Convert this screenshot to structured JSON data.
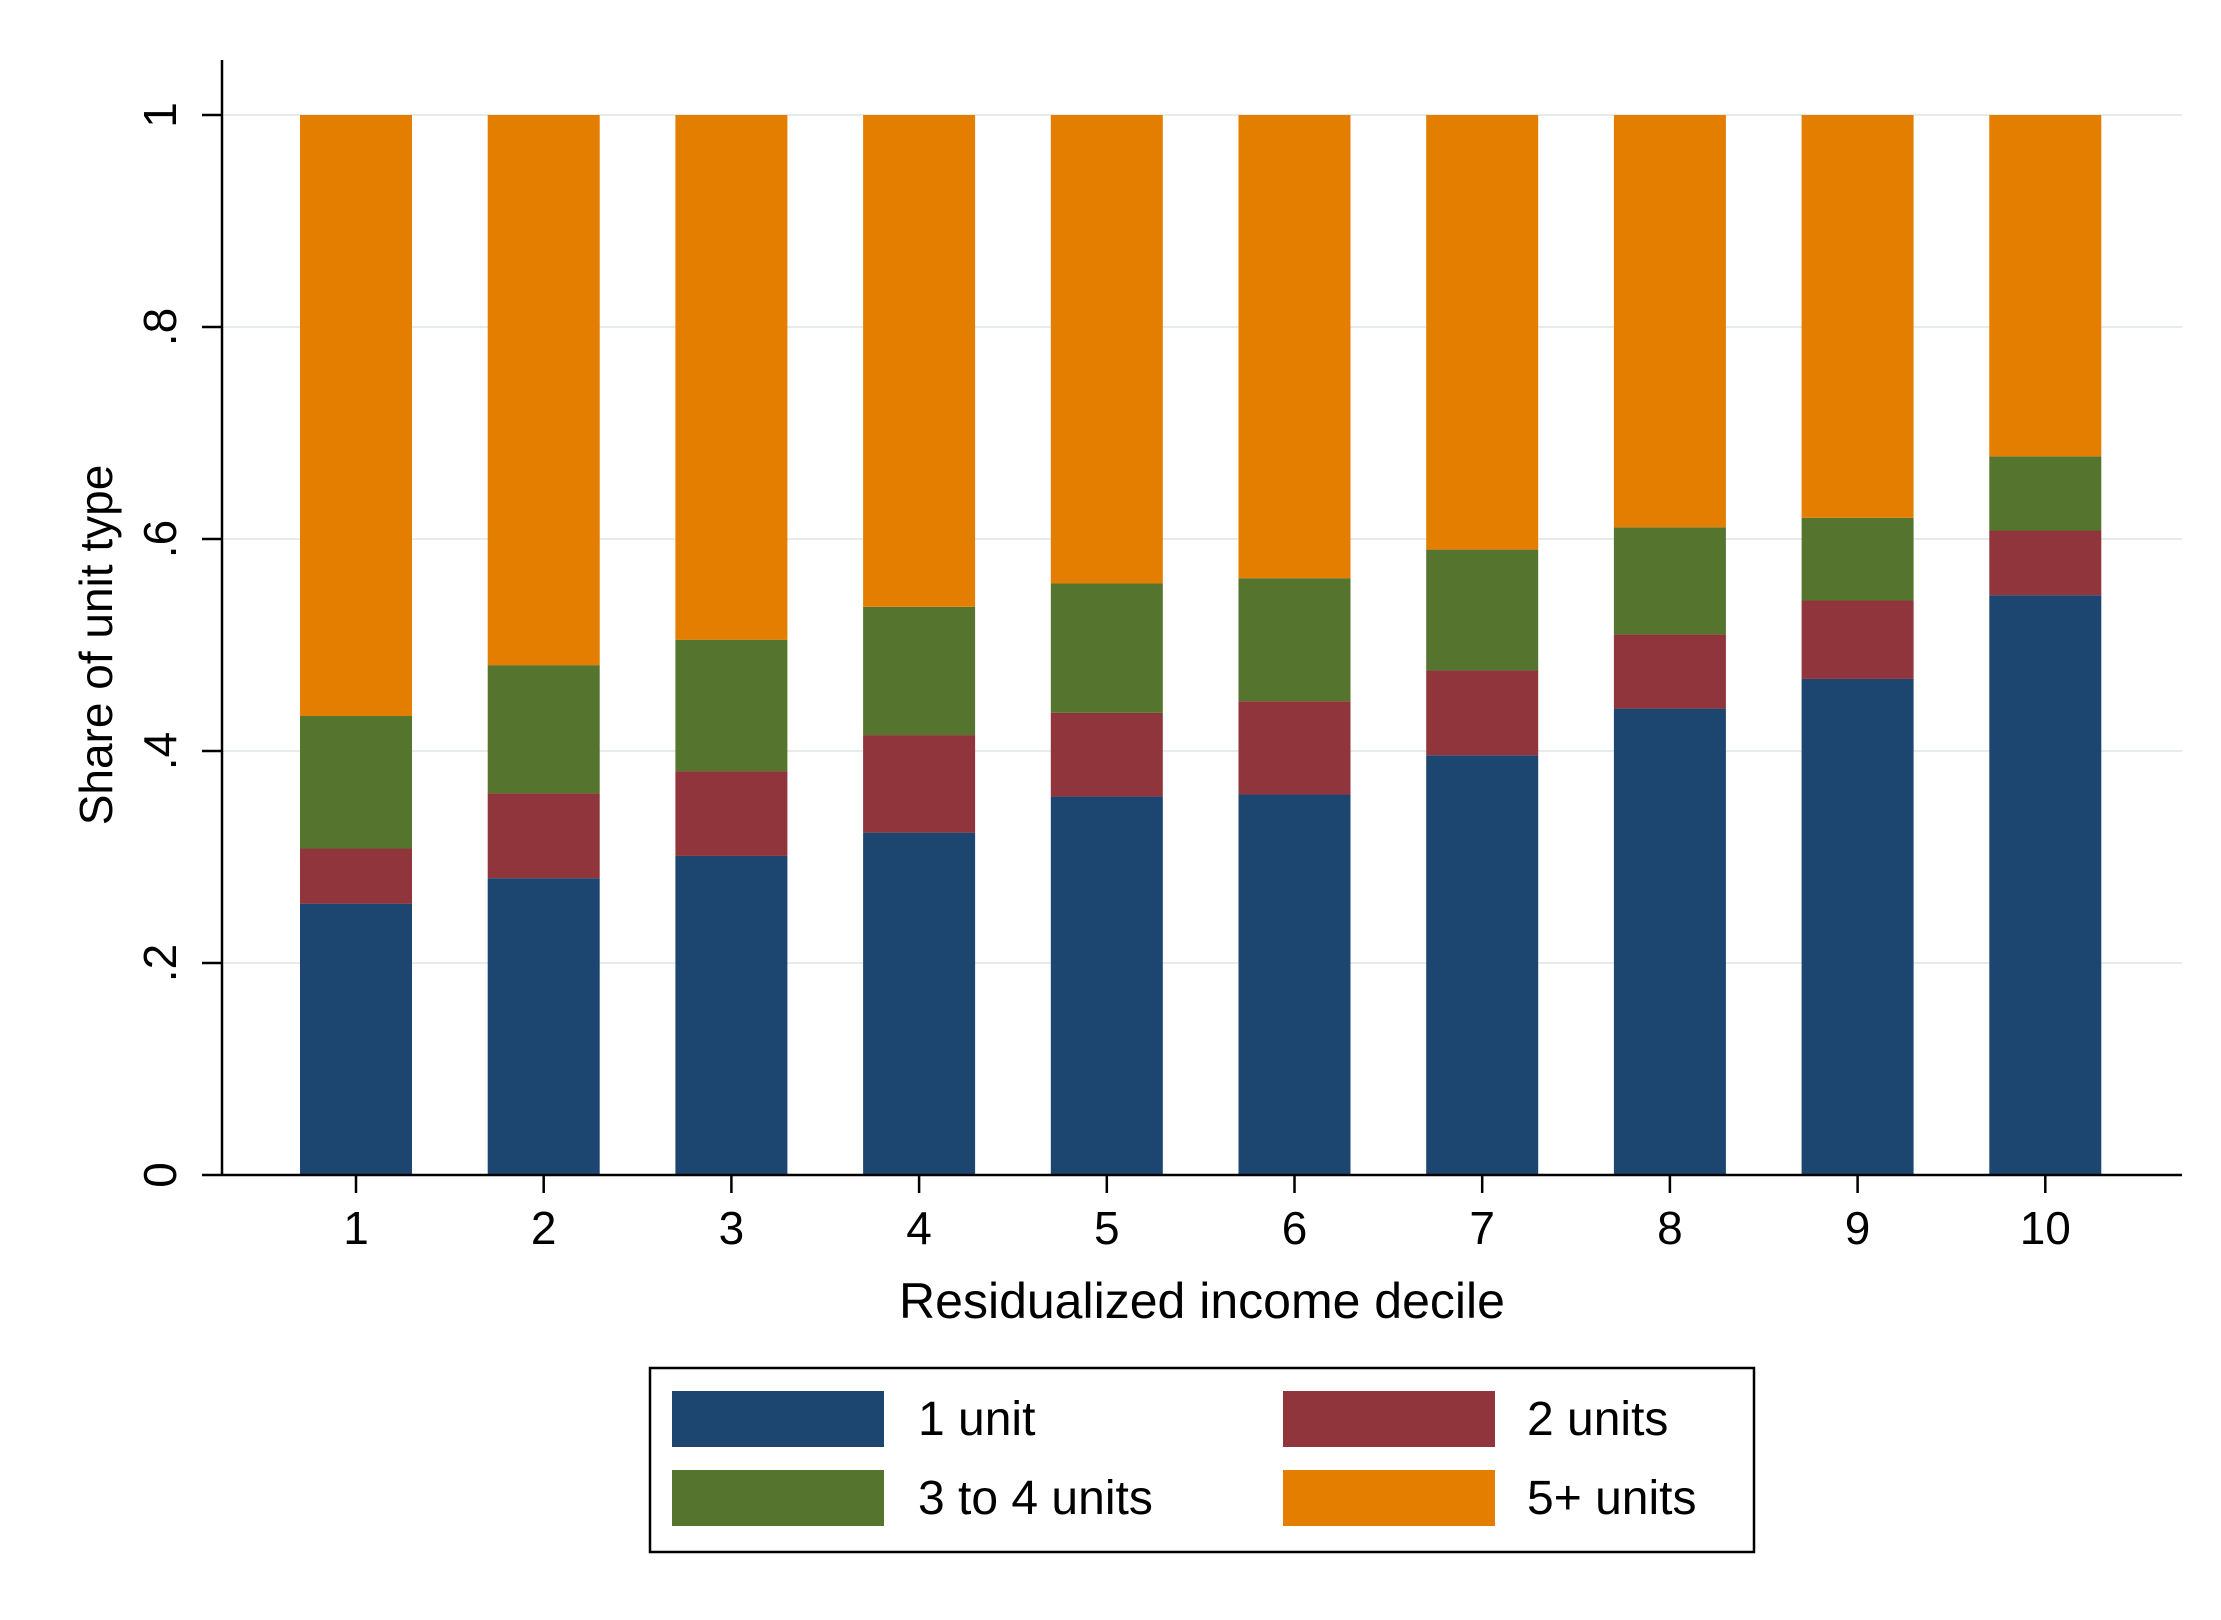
{
  "chart_data": {
    "type": "bar",
    "stacked": true,
    "title": "",
    "xlabel": "Residualized income decile",
    "ylabel": "Share of unit type",
    "categories": [
      "1",
      "2",
      "3",
      "4",
      "5",
      "6",
      "7",
      "8",
      "9",
      "10"
    ],
    "ylim": [
      0,
      1.05
    ],
    "yticks": [
      {
        "value": 0,
        "label": "0"
      },
      {
        "value": 0.2,
        "label": ".2"
      },
      {
        "value": 0.4,
        "label": ".4"
      },
      {
        "value": 0.6,
        "label": ".6"
      },
      {
        "value": 0.8,
        "label": ".8"
      },
      {
        "value": 1,
        "label": "1"
      }
    ],
    "grid": true,
    "legend_position": "bottom",
    "series": [
      {
        "name": "1 unit",
        "color": "#1c4670",
        "values": [
          0.256,
          0.28,
          0.301,
          0.323,
          0.357,
          0.359,
          0.396,
          0.44,
          0.468,
          0.547
        ]
      },
      {
        "name": "2 units",
        "color": "#90353b",
        "values": [
          0.052,
          0.08,
          0.08,
          0.092,
          0.079,
          0.088,
          0.08,
          0.07,
          0.074,
          0.061
        ]
      },
      {
        "name": "3 to 4 units",
        "color": "#55752f",
        "values": [
          0.125,
          0.121,
          0.124,
          0.121,
          0.122,
          0.116,
          0.114,
          0.101,
          0.078,
          0.07
        ]
      },
      {
        "name": "5+ units",
        "color": "#e37e00",
        "values": [
          0.567,
          0.519,
          0.495,
          0.464,
          0.442,
          0.437,
          0.41,
          0.389,
          0.38,
          0.322
        ]
      }
    ]
  }
}
